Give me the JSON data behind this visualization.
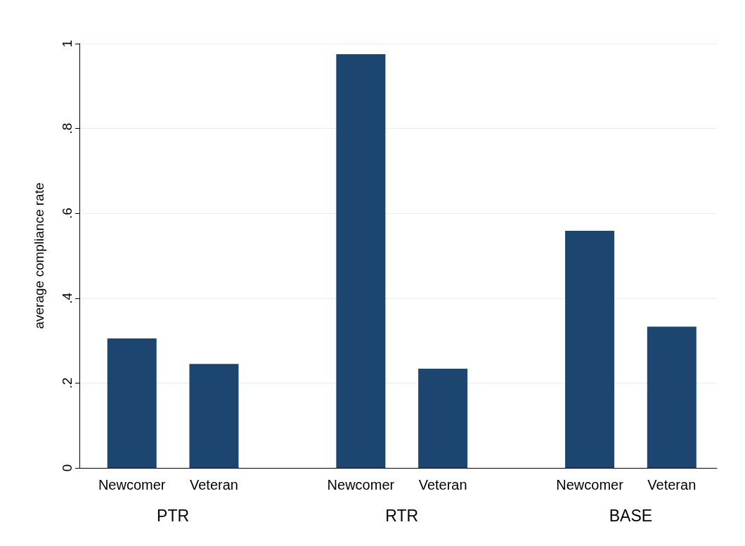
{
  "chart_data": {
    "type": "bar",
    "ylabel": "average compliance rate",
    "categories": [
      "Newcomer",
      "Veteran",
      "Newcomer",
      "Veteran",
      "Newcomer",
      "Veteran"
    ],
    "values": [
      0.305,
      0.245,
      0.975,
      0.234,
      0.559,
      0.333
    ],
    "color": "#1c4670",
    "annotations": [
      "PTR",
      "RTR",
      "BASE"
    ],
    "ylim": [
      0,
      1.0
    ],
    "yticks": [
      0,
      {
        "value": 0.2,
        "label": ".2"
      },
      {
        "value": 0.4,
        "label": ".4"
      },
      {
        "value": 0.6,
        "label": ".6"
      },
      {
        "value": 0.8,
        "label": ".8"
      },
      1
    ],
    "grid": "y"
  }
}
